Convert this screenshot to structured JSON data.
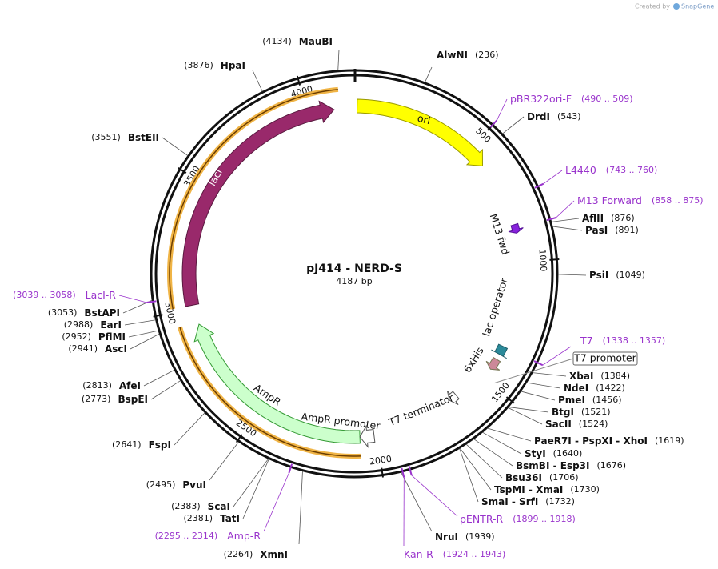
{
  "watermark": {
    "prefix": "Created by",
    "brand": "SnapGene"
  },
  "map": {
    "name": "pJ414 - NERD-S",
    "length": "4187 bp",
    "ruler": [
      "500",
      "1000",
      "1500",
      "2000",
      "2500",
      "3000",
      "3500",
      "4000"
    ],
    "features": {
      "ori": "ori",
      "lacI": "lacI",
      "AmpR": "AmpR",
      "AmpR_promoter": "AmpR promoter",
      "T7_terminator": "T7 terminator",
      "lac_operator": "lac operator",
      "his": "6xHis",
      "M13_fwd": "M13 fwd",
      "T7_promoter": "T7 promoter"
    },
    "enzymes": [
      {
        "name": "AlwNI",
        "pos": "(236)"
      },
      {
        "name": "DrdI",
        "pos": "(543)"
      },
      {
        "name": "AflII",
        "pos": "(876)"
      },
      {
        "name": "PasI",
        "pos": "(891)"
      },
      {
        "name": "PsiI",
        "pos": "(1049)"
      },
      {
        "name": "XbaI",
        "pos": "(1384)"
      },
      {
        "name": "NdeI",
        "pos": "(1422)"
      },
      {
        "name": "PmeI",
        "pos": "(1456)"
      },
      {
        "name": "BtgI",
        "pos": "(1521)"
      },
      {
        "name": "SacII",
        "pos": "(1524)"
      },
      {
        "name": "PaeR7I - PspXI - XhoI",
        "pos": "(1619)"
      },
      {
        "name": "StyI",
        "pos": "(1640)"
      },
      {
        "name": "BsmBI - Esp3I",
        "pos": "(1676)"
      },
      {
        "name": "Bsu36I",
        "pos": "(1706)"
      },
      {
        "name": "TspMI - XmaI",
        "pos": "(1730)"
      },
      {
        "name": "SmaI - SrfI",
        "pos": "(1732)"
      },
      {
        "name": "NruI",
        "pos": "(1939)"
      },
      {
        "name": "XmnI",
        "pos": "(2264)"
      },
      {
        "name": "TatI",
        "pos": "(2381)"
      },
      {
        "name": "ScaI",
        "pos": "(2383)"
      },
      {
        "name": "PvuI",
        "pos": "(2495)"
      },
      {
        "name": "FspI",
        "pos": "(2641)"
      },
      {
        "name": "BspEI",
        "pos": "(2773)"
      },
      {
        "name": "AfeI",
        "pos": "(2813)"
      },
      {
        "name": "AscI",
        "pos": "(2941)"
      },
      {
        "name": "PflMI",
        "pos": "(2952)"
      },
      {
        "name": "EarI",
        "pos": "(2988)"
      },
      {
        "name": "BstAPI",
        "pos": "(3053)"
      },
      {
        "name": "BstEII",
        "pos": "(3551)"
      },
      {
        "name": "HpaI",
        "pos": "(3876)"
      },
      {
        "name": "MauBI",
        "pos": "(4134)"
      }
    ],
    "primers": [
      {
        "name": "pBR322ori-F",
        "range": "(490 .. 509)"
      },
      {
        "name": "L4440",
        "range": "(743 .. 760)"
      },
      {
        "name": "M13 Forward",
        "range": "(858 .. 875)"
      },
      {
        "name": "T7",
        "range": "(1338 .. 1357)"
      },
      {
        "name": "pENTR-R",
        "range": "(1899 .. 1918)"
      },
      {
        "name": "Kan-R",
        "range": "(1924 .. 1943)"
      },
      {
        "name": "Amp-R",
        "range": "(2295 .. 2314)"
      },
      {
        "name": "LacI-R",
        "range": "(3039 .. 3058)"
      }
    ]
  }
}
